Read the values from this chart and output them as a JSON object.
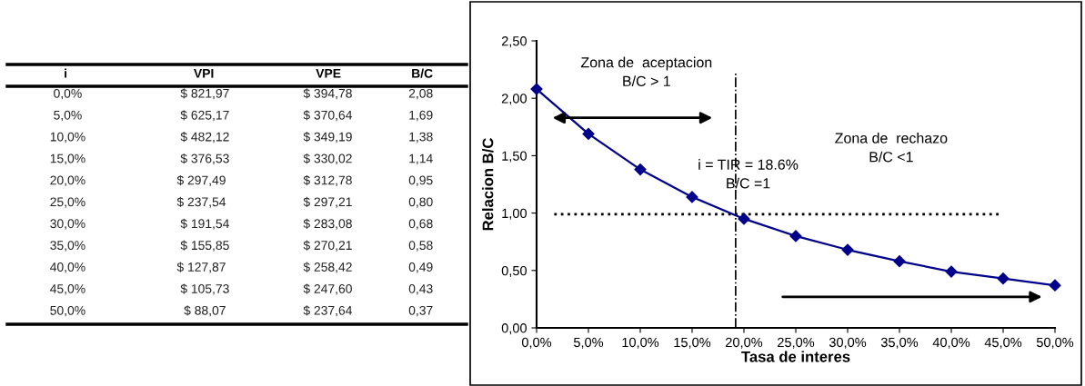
{
  "chart_data": [
    {
      "type": "other",
      "annotations": [
        "i",
        "VPI",
        "VPE",
        "B/C",
        "0,0%",
        "$ 821,97",
        "$ 394,78",
        "2,08",
        "5,0%",
        "$ 625,17",
        "$ 370,64",
        "1,69",
        "10,0%",
        "$ 482,12",
        "$ 349,19",
        "1,38",
        "15,0%",
        "$ 376,53",
        "$ 330,02",
        "1,14",
        "20,0%",
        "$ 297,49",
        "$ 312,78",
        "0,95",
        "25,0%",
        "$ 237,54",
        "$ 297,21",
        "0,80",
        "30,0%",
        "$ 191,54",
        "$ 283,08",
        "0,68",
        "35,0%",
        "$ 155,85",
        "$ 270,21",
        "0,58",
        "40,0%",
        "$ 127,87",
        "$ 258,42",
        "0,49",
        "45,0%",
        "$ 105,73",
        "$ 247,60",
        "0,43",
        "50,0%",
        "$ 88,07",
        "$ 237,64",
        "0,37"
      ]
    },
    {
      "type": "line",
      "xlabel": "Tasa de interes",
      "ylabel": "Relacion B/C",
      "x": [
        0,
        5,
        10,
        15,
        20,
        25,
        30,
        35,
        40,
        45,
        50
      ],
      "series": [
        {
          "color": "#00008b",
          "values": [
            2.08,
            1.69,
            1.38,
            1.14,
            0.95,
            0.8,
            0.68,
            0.58,
            0.49,
            0.43,
            0.37
          ]
        }
      ],
      "marker": "diamond",
      "line_style": "solid",
      "grid": false,
      "xlim": [
        0,
        50
      ],
      "ylim": [
        0,
        2.5
      ],
      "xticks": [
        {
          "value": 0,
          "label": "0,0%"
        },
        {
          "value": 5,
          "label": "5,0%"
        },
        {
          "value": 10,
          "label": "10,0%"
        },
        {
          "value": 15,
          "label": "15,0%"
        },
        {
          "value": 20,
          "label": "20,0%"
        },
        {
          "value": 25,
          "label": "25,0%"
        },
        {
          "value": 30,
          "label": "30,0%"
        },
        {
          "value": 35,
          "label": "35,0%"
        },
        {
          "value": 40,
          "label": "40,0%"
        },
        {
          "value": 45,
          "label": "45,0%"
        },
        {
          "value": 50,
          "label": "50,0%"
        }
      ],
      "yticks": [
        {
          "value": 0,
          "label": "0,00"
        },
        {
          "value": 0.5,
          "label": "0,50"
        },
        {
          "value": 1,
          "label": "1,00"
        },
        {
          "value": 1.5,
          "label": "1,50"
        },
        {
          "value": 2,
          "label": "2,00"
        },
        {
          "value": 2.5,
          "label": "2,50"
        }
      ],
      "ref_lines": [
        {
          "axis": "x",
          "value": 19.2,
          "color": "#000000",
          "line_style": "dashdot"
        },
        {
          "axis": "y",
          "value": 0.99,
          "color": "#000000",
          "line_style": "dotted"
        }
      ],
      "annotations": [
        "Zona de  aceptacion\nB/C > 1",
        "i = TIR = 18.6%\nB/C =1",
        "Zona de  rechazo\nB/C <1"
      ]
    }
  ]
}
